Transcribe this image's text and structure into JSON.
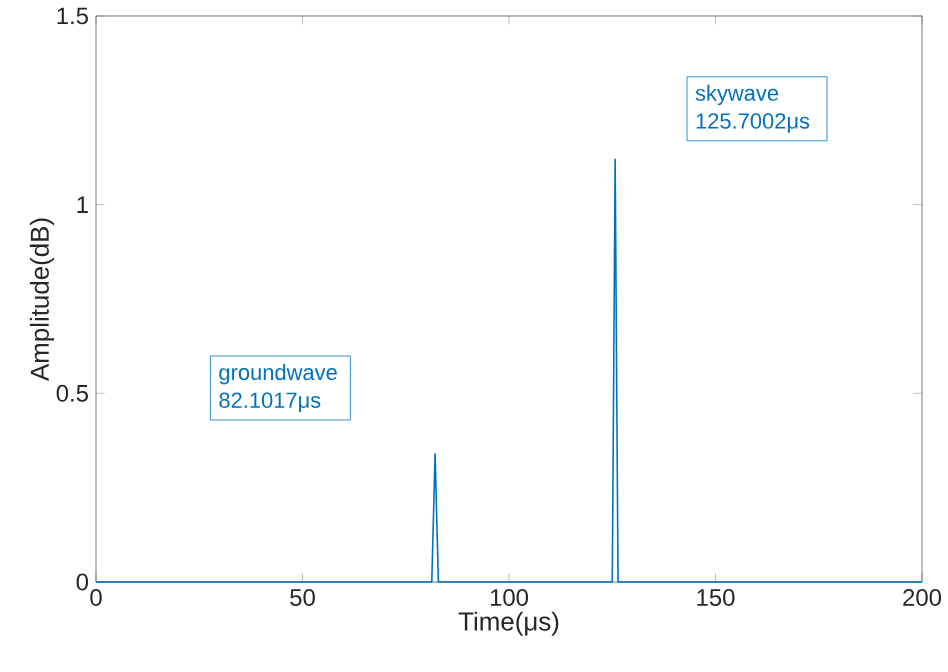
{
  "chart_data": {
    "type": "line",
    "xlabel": "Time(μs)",
    "ylabel": "Amplitude(dB)",
    "x": [
      0,
      81.3,
      82.1,
      82.9,
      125.0,
      125.7,
      126.4,
      200
    ],
    "values": [
      0,
      0,
      0.34,
      0,
      0,
      1.12,
      0,
      0
    ],
    "color": "#0072bd",
    "xlim": [
      0,
      200
    ],
    "ylim": [
      0,
      1.5
    ],
    "xticks": [
      0,
      50,
      100,
      150,
      200
    ],
    "yticks": [
      0,
      0.5,
      1,
      1.5
    ],
    "annotations": [
      "groundwave 82.1017μs",
      "skywave 125.7002μs"
    ]
  }
}
